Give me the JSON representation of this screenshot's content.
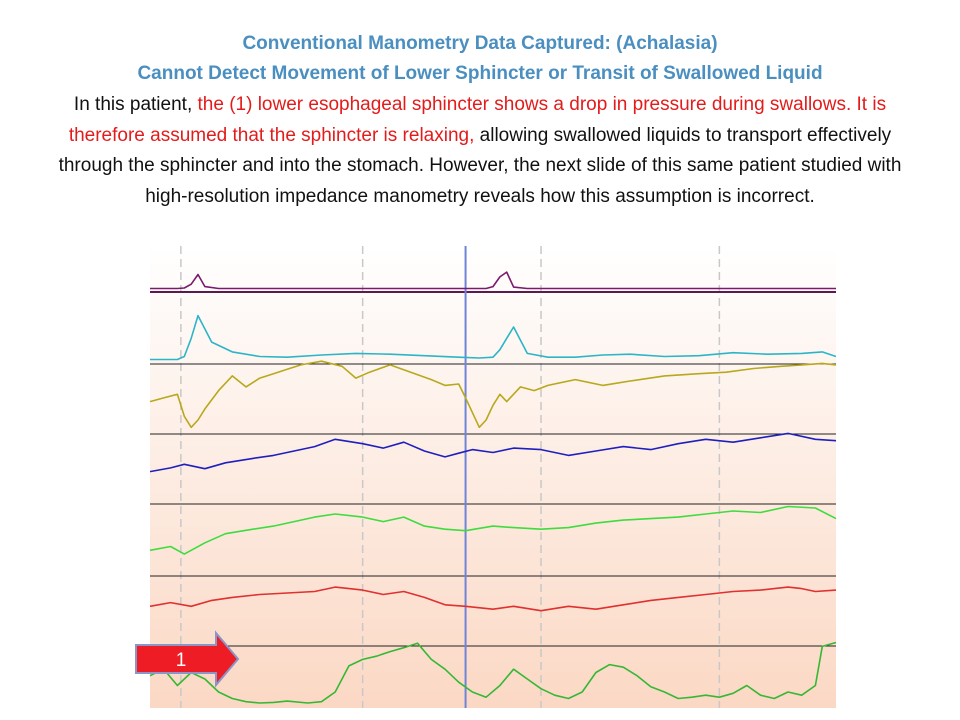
{
  "heading": {
    "line1": "Conventional Manometry Data Captured: (Achalasia)",
    "line2": "Cannot Detect Movement of Lower Sphincter or Transit of Swallowed Liquid"
  },
  "description": {
    "intro": "In this patient, ",
    "highlight": "the (1) lower esophageal sphincter shows a drop in pressure during swallows. It is therefore assumed that the sphincter is relaxing,",
    "rest": " allowing swallowed liquids to transport effectively through the sphincter and into the stomach. However, the next slide of this same patient studied with high-resolution impedance manometry reveals how this assumption is incorrect."
  },
  "colors": {
    "background_top": "#ffffff",
    "background_bottom": "#fbd8c4",
    "highlight_text": "#e31b1b",
    "heading_text": "#4a8fc0",
    "swallow_marker": "#6f84d8",
    "arrow_fill": "#ee1c24",
    "arrow_border": "#8a96c8"
  },
  "chart_data": {
    "type": "line",
    "time_range": [
      0,
      100
    ],
    "swallow_markers": [
      46
    ],
    "dashed_gridlines": [
      4.5,
      31,
      57,
      83
    ],
    "baselines_top_to_bottom": [
      "purple",
      "teal",
      "gold",
      "blue",
      "green_upper",
      "red",
      "green_lower"
    ],
    "annotation": {
      "label": "1",
      "target_series": "green_lower",
      "arrow_icon": "right-arrow-icon"
    },
    "series": [
      {
        "key": "purple",
        "color": "#7a1a6e",
        "x": [
          0,
          4,
          5,
          6,
          7,
          8,
          10,
          20,
          30,
          40,
          46,
          49,
          50,
          51,
          52,
          53,
          55,
          70,
          85,
          100
        ],
        "y": [
          1,
          1,
          2,
          10,
          30,
          5,
          1,
          1,
          1,
          1,
          1,
          1,
          5,
          25,
          35,
          4,
          1,
          1,
          1,
          1
        ]
      },
      {
        "key": "teal",
        "color": "#2cb5c8",
        "x": [
          0,
          4,
          5,
          6,
          7,
          9,
          12,
          16,
          20,
          25,
          30,
          35,
          40,
          45,
          48,
          50,
          51,
          52,
          53,
          55,
          58,
          62,
          66,
          70,
          75,
          80,
          85,
          90,
          95,
          98,
          100
        ],
        "y": [
          2,
          2,
          6,
          30,
          60,
          25,
          12,
          6,
          5,
          8,
          10,
          9,
          7,
          5,
          4,
          5,
          15,
          30,
          45,
          10,
          5,
          5,
          8,
          9,
          6,
          7,
          11,
          9,
          10,
          12,
          6
        ]
      },
      {
        "key": "gold",
        "color": "#b8a81c",
        "x": [
          0,
          2,
          4,
          5,
          6,
          7,
          8,
          10,
          12,
          14,
          16,
          18,
          20,
          22,
          25,
          28,
          30,
          32,
          35,
          38,
          41,
          43,
          45,
          46,
          47,
          48,
          49,
          50,
          51,
          52,
          54,
          56,
          58,
          62,
          66,
          70,
          75,
          80,
          84,
          88,
          92,
          95,
          98,
          100
        ],
        "y": [
          40,
          45,
          50,
          20,
          5,
          15,
          30,
          55,
          75,
          60,
          72,
          78,
          84,
          90,
          95,
          88,
          72,
          80,
          90,
          80,
          70,
          62,
          64,
          45,
          25,
          5,
          15,
          35,
          50,
          40,
          60,
          55,
          62,
          70,
          62,
          68,
          75,
          78,
          80,
          85,
          88,
          90,
          92,
          90
        ]
      },
      {
        "key": "blue",
        "color": "#1f1fbf",
        "x": [
          0,
          3,
          5,
          8,
          11,
          15,
          18,
          21,
          24,
          27,
          31,
          34,
          37,
          40,
          43,
          45,
          47,
          50,
          53,
          57,
          61,
          65,
          69,
          73,
          77,
          81,
          85,
          89,
          93,
          97,
          100
        ],
        "y": [
          40,
          45,
          50,
          44,
          52,
          58,
          62,
          68,
          74,
          84,
          78,
          72,
          80,
          68,
          60,
          65,
          70,
          66,
          72,
          70,
          62,
          68,
          74,
          70,
          78,
          84,
          80,
          86,
          92,
          84,
          82
        ]
      },
      {
        "key": "green_upper",
        "color": "#3edc3e",
        "x": [
          0,
          3,
          5,
          8,
          11,
          15,
          18,
          21,
          24,
          27,
          31,
          34,
          37,
          40,
          43,
          46,
          50,
          53,
          57,
          61,
          65,
          69,
          73,
          77,
          81,
          85,
          89,
          93,
          97,
          100
        ],
        "y": [
          30,
          35,
          25,
          40,
          52,
          58,
          62,
          68,
          74,
          78,
          74,
          68,
          74,
          62,
          58,
          56,
          62,
          60,
          58,
          60,
          66,
          70,
          72,
          74,
          78,
          82,
          80,
          88,
          86,
          72
        ]
      },
      {
        "key": "red",
        "color": "#e03030",
        "x": [
          0,
          3,
          6,
          9,
          12,
          16,
          20,
          24,
          27,
          31,
          34,
          37,
          40,
          43,
          46,
          50,
          53,
          57,
          61,
          65,
          69,
          73,
          77,
          81,
          85,
          89,
          93,
          95,
          97,
          100
        ],
        "y": [
          50,
          55,
          50,
          58,
          62,
          66,
          68,
          70,
          76,
          72,
          66,
          70,
          62,
          52,
          50,
          46,
          50,
          44,
          50,
          46,
          52,
          58,
          62,
          66,
          70,
          72,
          76,
          74,
          70,
          72
        ]
      },
      {
        "key": "green_lower",
        "color": "#35b835",
        "x": [
          0,
          2,
          4,
          6,
          8,
          10,
          12,
          14,
          16,
          18,
          20,
          23,
          25,
          27,
          29,
          31,
          33,
          35,
          37,
          39,
          41,
          43,
          45,
          47,
          49,
          51,
          53,
          55,
          57,
          59,
          61,
          63,
          65,
          67,
          69,
          71,
          73,
          75,
          77,
          79,
          81,
          83,
          85,
          87,
          89,
          91,
          93,
          95,
          97,
          98,
          100
        ],
        "y": [
          45,
          55,
          30,
          50,
          40,
          20,
          10,
          5,
          3,
          4,
          6,
          3,
          5,
          20,
          60,
          70,
          75,
          82,
          88,
          95,
          70,
          55,
          35,
          20,
          12,
          30,
          55,
          40,
          25,
          15,
          10,
          20,
          50,
          62,
          58,
          45,
          28,
          20,
          10,
          12,
          15,
          12,
          18,
          30,
          15,
          10,
          20,
          15,
          30,
          90,
          96
        ]
      }
    ]
  }
}
